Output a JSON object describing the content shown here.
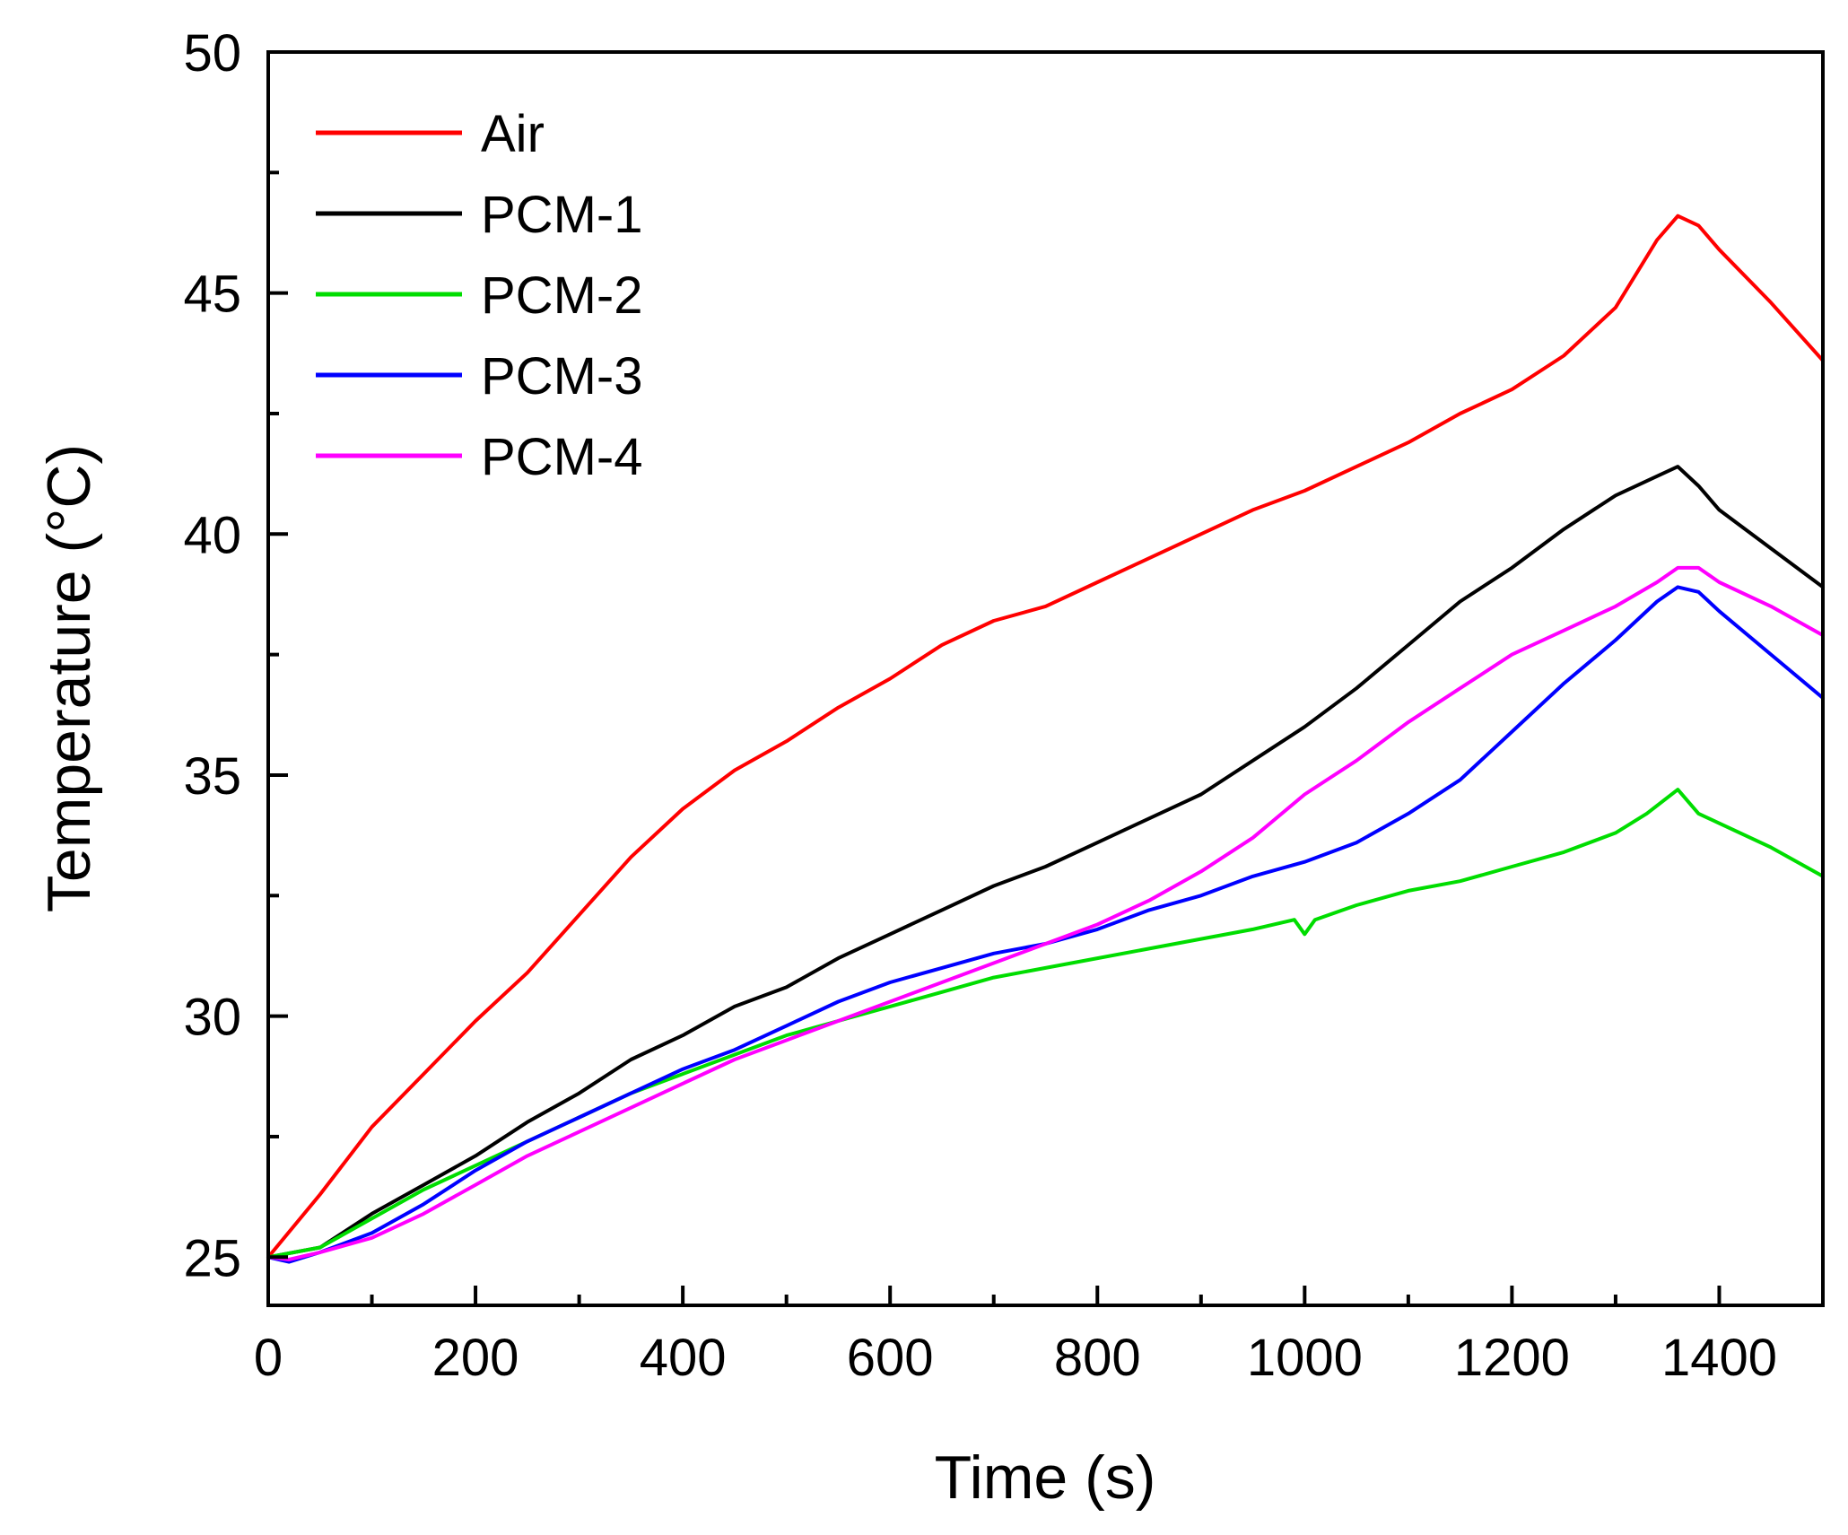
{
  "chart_data": {
    "type": "line",
    "title": "",
    "xlabel": "Time (s)",
    "ylabel": "Temperature (°C)",
    "xlim": [
      0,
      1500
    ],
    "ylim": [
      24,
      50
    ],
    "xticks": [
      0,
      200,
      400,
      600,
      800,
      1000,
      1200,
      1400
    ],
    "yticks": [
      25,
      30,
      35,
      40,
      45,
      50
    ],
    "x_minor_step": 100,
    "y_minor_step": 2.5,
    "grid": false,
    "legend_position": "top-left",
    "series": [
      {
        "name": "Air",
        "color": "#ff0000",
        "x": [
          0,
          50,
          100,
          150,
          200,
          250,
          300,
          350,
          400,
          450,
          500,
          550,
          600,
          650,
          700,
          750,
          800,
          850,
          900,
          950,
          1000,
          1050,
          1100,
          1150,
          1200,
          1250,
          1300,
          1340,
          1360,
          1380,
          1400,
          1450,
          1500
        ],
        "y": [
          25.0,
          26.3,
          27.7,
          28.8,
          29.9,
          30.9,
          32.1,
          33.3,
          34.3,
          35.1,
          35.7,
          36.4,
          37.0,
          37.7,
          38.2,
          38.5,
          39.0,
          39.5,
          40.0,
          40.5,
          40.9,
          41.4,
          41.9,
          42.5,
          43.0,
          43.7,
          44.7,
          46.1,
          46.6,
          46.4,
          45.9,
          44.8,
          43.6
        ]
      },
      {
        "name": "PCM-1",
        "color": "#000000",
        "x": [
          0,
          50,
          100,
          150,
          200,
          250,
          300,
          350,
          400,
          450,
          500,
          550,
          600,
          650,
          700,
          750,
          800,
          850,
          900,
          950,
          1000,
          1050,
          1100,
          1150,
          1200,
          1250,
          1300,
          1340,
          1360,
          1380,
          1400,
          1450,
          1500
        ],
        "y": [
          25.0,
          25.2,
          25.9,
          26.5,
          27.1,
          27.8,
          28.4,
          29.1,
          29.6,
          30.2,
          30.6,
          31.2,
          31.7,
          32.2,
          32.7,
          33.1,
          33.6,
          34.1,
          34.6,
          35.3,
          36.0,
          36.8,
          37.7,
          38.6,
          39.3,
          40.1,
          40.8,
          41.2,
          41.4,
          41.0,
          40.5,
          39.7,
          38.9
        ]
      },
      {
        "name": "PCM-2",
        "color": "#00dd00",
        "x": [
          0,
          50,
          100,
          150,
          200,
          250,
          300,
          350,
          400,
          450,
          500,
          550,
          600,
          650,
          700,
          750,
          800,
          850,
          900,
          950,
          990,
          1000,
          1010,
          1050,
          1100,
          1150,
          1200,
          1250,
          1300,
          1330,
          1360,
          1380,
          1400,
          1450,
          1500
        ],
        "y": [
          25.0,
          25.2,
          25.8,
          26.4,
          26.9,
          27.4,
          27.9,
          28.4,
          28.8,
          29.2,
          29.6,
          29.9,
          30.2,
          30.5,
          30.8,
          31.0,
          31.2,
          31.4,
          31.6,
          31.8,
          32.0,
          31.7,
          32.0,
          32.3,
          32.6,
          32.8,
          33.1,
          33.4,
          33.8,
          34.2,
          34.7,
          34.2,
          34.0,
          33.5,
          32.9
        ]
      },
      {
        "name": "PCM-3",
        "color": "#0000ff",
        "x": [
          0,
          20,
          50,
          100,
          150,
          200,
          250,
          300,
          350,
          400,
          450,
          500,
          550,
          600,
          650,
          700,
          750,
          800,
          850,
          900,
          950,
          1000,
          1050,
          1100,
          1150,
          1200,
          1250,
          1300,
          1340,
          1360,
          1380,
          1400,
          1450,
          1500
        ],
        "y": [
          25.0,
          24.9,
          25.1,
          25.5,
          26.1,
          26.8,
          27.4,
          27.9,
          28.4,
          28.9,
          29.3,
          29.8,
          30.3,
          30.7,
          31.0,
          31.3,
          31.5,
          31.8,
          32.2,
          32.5,
          32.9,
          33.2,
          33.6,
          34.2,
          34.9,
          35.9,
          36.9,
          37.8,
          38.6,
          38.9,
          38.8,
          38.4,
          37.5,
          36.6
        ]
      },
      {
        "name": "PCM-4",
        "color": "#ff00ff",
        "x": [
          0,
          20,
          50,
          100,
          150,
          200,
          250,
          300,
          350,
          400,
          450,
          500,
          550,
          600,
          650,
          700,
          750,
          800,
          850,
          900,
          950,
          1000,
          1050,
          1100,
          1150,
          1200,
          1250,
          1300,
          1340,
          1360,
          1380,
          1400,
          1450,
          1500
        ],
        "y": [
          25.0,
          24.95,
          25.1,
          25.4,
          25.9,
          26.5,
          27.1,
          27.6,
          28.1,
          28.6,
          29.1,
          29.5,
          29.9,
          30.3,
          30.7,
          31.1,
          31.5,
          31.9,
          32.4,
          33.0,
          33.7,
          34.6,
          35.3,
          36.1,
          36.8,
          37.5,
          38.0,
          38.5,
          39.0,
          39.3,
          39.3,
          39.0,
          38.5,
          37.9
        ]
      }
    ]
  }
}
